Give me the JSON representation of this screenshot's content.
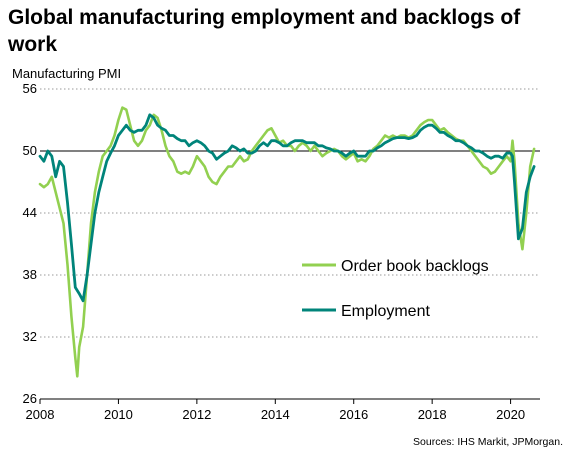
{
  "title": "Global manufacturing employment and backlogs of work",
  "source": "Sources: IHS Markit, JPMorgan.",
  "chart_data": {
    "type": "line",
    "ylabel": "Manufacturing  PMI",
    "ylim": [
      26,
      56
    ],
    "yticks": [
      26,
      32,
      38,
      44,
      50,
      56
    ],
    "xlim": [
      2008,
      2020.75
    ],
    "xticks": [
      2008,
      2010,
      2012,
      2014,
      2016,
      2018,
      2020
    ],
    "xtick_labels": [
      "2008",
      "2010",
      "2012",
      "2014",
      "2016",
      "2018",
      "2020"
    ],
    "reference_line": 50,
    "grid": "horizontal dotted",
    "series": [
      {
        "name": "Order book backlogs",
        "color": "#92d050",
        "points": [
          [
            2008.0,
            46.8
          ],
          [
            2008.1,
            46.5
          ],
          [
            2008.2,
            46.8
          ],
          [
            2008.3,
            47.5
          ],
          [
            2008.4,
            46.0
          ],
          [
            2008.5,
            44.5
          ],
          [
            2008.6,
            43.0
          ],
          [
            2008.7,
            39.0
          ],
          [
            2008.8,
            34.0
          ],
          [
            2008.9,
            30.0
          ],
          [
            2008.95,
            28.2
          ],
          [
            2009.0,
            31.0
          ],
          [
            2009.1,
            33.0
          ],
          [
            2009.2,
            38.0
          ],
          [
            2009.3,
            43.0
          ],
          [
            2009.4,
            46.0
          ],
          [
            2009.5,
            48.0
          ],
          [
            2009.6,
            49.5
          ],
          [
            2009.7,
            50.0
          ],
          [
            2009.8,
            50.5
          ],
          [
            2009.9,
            51.5
          ],
          [
            2010.0,
            53.0
          ],
          [
            2010.1,
            54.2
          ],
          [
            2010.2,
            54.0
          ],
          [
            2010.3,
            52.5
          ],
          [
            2010.4,
            51.0
          ],
          [
            2010.5,
            50.5
          ],
          [
            2010.6,
            51.0
          ],
          [
            2010.7,
            52.0
          ],
          [
            2010.8,
            52.5
          ],
          [
            2010.9,
            53.5
          ],
          [
            2011.0,
            53.2
          ],
          [
            2011.1,
            52.0
          ],
          [
            2011.2,
            50.5
          ],
          [
            2011.3,
            49.5
          ],
          [
            2011.4,
            49.0
          ],
          [
            2011.5,
            48.0
          ],
          [
            2011.6,
            47.8
          ],
          [
            2011.7,
            48.0
          ],
          [
            2011.8,
            47.8
          ],
          [
            2011.9,
            48.5
          ],
          [
            2012.0,
            49.5
          ],
          [
            2012.1,
            49.0
          ],
          [
            2012.2,
            48.5
          ],
          [
            2012.3,
            47.5
          ],
          [
            2012.4,
            47.0
          ],
          [
            2012.5,
            46.8
          ],
          [
            2012.6,
            47.5
          ],
          [
            2012.7,
            48.0
          ],
          [
            2012.8,
            48.5
          ],
          [
            2012.9,
            48.5
          ],
          [
            2013.0,
            49.0
          ],
          [
            2013.1,
            49.5
          ],
          [
            2013.2,
            49.0
          ],
          [
            2013.3,
            49.2
          ],
          [
            2013.4,
            50.0
          ],
          [
            2013.5,
            50.5
          ],
          [
            2013.6,
            51.0
          ],
          [
            2013.7,
            51.5
          ],
          [
            2013.8,
            52.0
          ],
          [
            2013.9,
            52.2
          ],
          [
            2014.0,
            51.5
          ],
          [
            2014.1,
            50.8
          ],
          [
            2014.2,
            51.0
          ],
          [
            2014.3,
            50.5
          ],
          [
            2014.4,
            50.5
          ],
          [
            2014.5,
            50.0
          ],
          [
            2014.6,
            50.5
          ],
          [
            2014.7,
            50.8
          ],
          [
            2014.8,
            50.5
          ],
          [
            2014.9,
            50.0
          ],
          [
            2015.0,
            50.5
          ],
          [
            2015.1,
            50.0
          ],
          [
            2015.2,
            49.5
          ],
          [
            2015.3,
            49.8
          ],
          [
            2015.4,
            50.0
          ],
          [
            2015.5,
            50.2
          ],
          [
            2015.6,
            50.0
          ],
          [
            2015.7,
            49.5
          ],
          [
            2015.8,
            49.2
          ],
          [
            2015.9,
            49.5
          ],
          [
            2016.0,
            49.8
          ],
          [
            2016.1,
            49.0
          ],
          [
            2016.2,
            49.2
          ],
          [
            2016.3,
            49.0
          ],
          [
            2016.4,
            49.5
          ],
          [
            2016.5,
            50.2
          ],
          [
            2016.6,
            50.5
          ],
          [
            2016.7,
            51.0
          ],
          [
            2016.8,
            51.5
          ],
          [
            2016.9,
            51.3
          ],
          [
            2017.0,
            51.5
          ],
          [
            2017.1,
            51.3
          ],
          [
            2017.2,
            51.5
          ],
          [
            2017.3,
            51.5
          ],
          [
            2017.4,
            51.3
          ],
          [
            2017.5,
            51.5
          ],
          [
            2017.6,
            52.0
          ],
          [
            2017.7,
            52.5
          ],
          [
            2017.8,
            52.8
          ],
          [
            2017.9,
            53.0
          ],
          [
            2018.0,
            53.0
          ],
          [
            2018.1,
            52.5
          ],
          [
            2018.2,
            52.0
          ],
          [
            2018.3,
            52.2
          ],
          [
            2018.4,
            51.8
          ],
          [
            2018.5,
            51.5
          ],
          [
            2018.6,
            51.2
          ],
          [
            2018.7,
            51.0
          ],
          [
            2018.8,
            51.0
          ],
          [
            2018.9,
            50.5
          ],
          [
            2019.0,
            50.0
          ],
          [
            2019.1,
            49.5
          ],
          [
            2019.2,
            49.0
          ],
          [
            2019.3,
            48.5
          ],
          [
            2019.4,
            48.3
          ],
          [
            2019.5,
            47.8
          ],
          [
            2019.6,
            48.0
          ],
          [
            2019.7,
            48.5
          ],
          [
            2019.8,
            49.0
          ],
          [
            2019.9,
            49.5
          ],
          [
            2020.0,
            49.0
          ],
          [
            2020.05,
            51.0
          ],
          [
            2020.1,
            49.0
          ],
          [
            2020.2,
            43.0
          ],
          [
            2020.3,
            40.5
          ],
          [
            2020.4,
            44.0
          ],
          [
            2020.5,
            48.5
          ],
          [
            2020.6,
            50.2
          ]
        ]
      },
      {
        "name": "Employment",
        "color": "#00847a",
        "points": [
          [
            2008.0,
            49.5
          ],
          [
            2008.1,
            49.0
          ],
          [
            2008.2,
            50.0
          ],
          [
            2008.3,
            49.5
          ],
          [
            2008.4,
            47.5
          ],
          [
            2008.5,
            49.0
          ],
          [
            2008.6,
            48.5
          ],
          [
            2008.7,
            45.0
          ],
          [
            2008.8,
            41.0
          ],
          [
            2008.9,
            36.8
          ],
          [
            2009.0,
            36.2
          ],
          [
            2009.1,
            35.5
          ],
          [
            2009.2,
            38.0
          ],
          [
            2009.3,
            41.0
          ],
          [
            2009.4,
            44.0
          ],
          [
            2009.5,
            46.0
          ],
          [
            2009.6,
            47.5
          ],
          [
            2009.7,
            49.0
          ],
          [
            2009.8,
            49.8
          ],
          [
            2009.9,
            50.5
          ],
          [
            2010.0,
            51.5
          ],
          [
            2010.1,
            52.0
          ],
          [
            2010.2,
            52.5
          ],
          [
            2010.3,
            52.0
          ],
          [
            2010.4,
            51.8
          ],
          [
            2010.5,
            52.0
          ],
          [
            2010.6,
            52.0
          ],
          [
            2010.7,
            52.5
          ],
          [
            2010.8,
            53.5
          ],
          [
            2010.9,
            53.2
          ],
          [
            2011.0,
            52.5
          ],
          [
            2011.1,
            52.2
          ],
          [
            2011.2,
            52.0
          ],
          [
            2011.3,
            51.5
          ],
          [
            2011.4,
            51.5
          ],
          [
            2011.5,
            51.2
          ],
          [
            2011.6,
            51.0
          ],
          [
            2011.7,
            51.0
          ],
          [
            2011.8,
            50.5
          ],
          [
            2011.9,
            50.8
          ],
          [
            2012.0,
            51.0
          ],
          [
            2012.1,
            50.8
          ],
          [
            2012.2,
            50.5
          ],
          [
            2012.3,
            50.0
          ],
          [
            2012.4,
            49.8
          ],
          [
            2012.5,
            49.2
          ],
          [
            2012.6,
            49.5
          ],
          [
            2012.7,
            49.8
          ],
          [
            2012.8,
            50.0
          ],
          [
            2012.9,
            50.5
          ],
          [
            2013.0,
            50.3
          ],
          [
            2013.1,
            50.0
          ],
          [
            2013.2,
            50.2
          ],
          [
            2013.3,
            49.8
          ],
          [
            2013.4,
            49.8
          ],
          [
            2013.5,
            50.0
          ],
          [
            2013.6,
            50.5
          ],
          [
            2013.7,
            50.8
          ],
          [
            2013.8,
            50.5
          ],
          [
            2013.9,
            51.0
          ],
          [
            2014.0,
            51.0
          ],
          [
            2014.1,
            50.8
          ],
          [
            2014.2,
            50.5
          ],
          [
            2014.3,
            50.5
          ],
          [
            2014.4,
            50.8
          ],
          [
            2014.5,
            51.0
          ],
          [
            2014.6,
            51.0
          ],
          [
            2014.7,
            51.0
          ],
          [
            2014.8,
            50.8
          ],
          [
            2014.9,
            50.8
          ],
          [
            2015.0,
            50.8
          ],
          [
            2015.1,
            50.5
          ],
          [
            2015.2,
            50.5
          ],
          [
            2015.3,
            50.3
          ],
          [
            2015.4,
            50.2
          ],
          [
            2015.5,
            50.0
          ],
          [
            2015.6,
            50.0
          ],
          [
            2015.7,
            49.8
          ],
          [
            2015.8,
            49.5
          ],
          [
            2015.9,
            49.8
          ],
          [
            2016.0,
            50.0
          ],
          [
            2016.1,
            49.5
          ],
          [
            2016.2,
            49.5
          ],
          [
            2016.3,
            49.5
          ],
          [
            2016.4,
            50.0
          ],
          [
            2016.5,
            50.0
          ],
          [
            2016.6,
            50.3
          ],
          [
            2016.7,
            50.5
          ],
          [
            2016.8,
            50.8
          ],
          [
            2016.9,
            51.0
          ],
          [
            2017.0,
            51.2
          ],
          [
            2017.1,
            51.3
          ],
          [
            2017.2,
            51.3
          ],
          [
            2017.3,
            51.3
          ],
          [
            2017.4,
            51.2
          ],
          [
            2017.5,
            51.3
          ],
          [
            2017.6,
            51.5
          ],
          [
            2017.7,
            52.0
          ],
          [
            2017.8,
            52.3
          ],
          [
            2017.9,
            52.5
          ],
          [
            2018.0,
            52.5
          ],
          [
            2018.1,
            52.2
          ],
          [
            2018.2,
            51.8
          ],
          [
            2018.3,
            51.8
          ],
          [
            2018.4,
            51.5
          ],
          [
            2018.5,
            51.3
          ],
          [
            2018.6,
            51.0
          ],
          [
            2018.7,
            51.0
          ],
          [
            2018.8,
            50.8
          ],
          [
            2018.9,
            50.5
          ],
          [
            2019.0,
            50.3
          ],
          [
            2019.1,
            50.0
          ],
          [
            2019.2,
            50.0
          ],
          [
            2019.3,
            49.8
          ],
          [
            2019.4,
            49.5
          ],
          [
            2019.5,
            49.3
          ],
          [
            2019.6,
            49.5
          ],
          [
            2019.7,
            49.5
          ],
          [
            2019.8,
            49.3
          ],
          [
            2019.9,
            49.8
          ],
          [
            2020.0,
            49.8
          ],
          [
            2020.05,
            49.5
          ],
          [
            2020.1,
            47.0
          ],
          [
            2020.2,
            41.5
          ],
          [
            2020.3,
            42.5
          ],
          [
            2020.4,
            46.0
          ],
          [
            2020.5,
            47.5
          ],
          [
            2020.6,
            48.5
          ]
        ]
      }
    ]
  }
}
